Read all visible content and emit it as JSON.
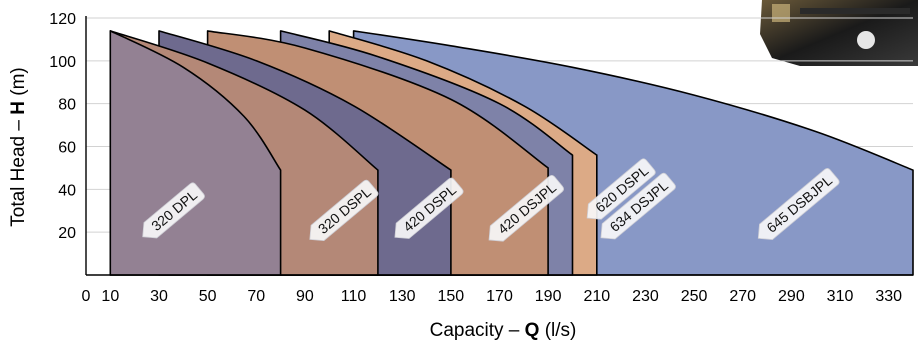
{
  "chart_data": {
    "type": "area",
    "title": "",
    "xlabel_prefix": "Capacity – ",
    "xlabel_bold": "Q",
    "xlabel_suffix": " (l/s)",
    "ylabel_prefix": "Total Head – ",
    "ylabel_bold": "H",
    "ylabel_suffix": " (m)",
    "xlim": [
      0,
      340
    ],
    "ylim": [
      0,
      120
    ],
    "x_ticks": [
      0,
      10,
      30,
      50,
      70,
      90,
      110,
      130,
      150,
      170,
      190,
      210,
      230,
      250,
      270,
      290,
      310,
      330
    ],
    "y_ticks": [
      20,
      40,
      60,
      80,
      100,
      120
    ],
    "grid": "horizontal",
    "series": [
      {
        "name": "645 DSBJPL",
        "color": "#8898c6",
        "x": [
          110,
          150,
          200,
          250,
          300,
          340
        ],
        "y": [
          114,
          107,
          97,
          84,
          67,
          49
        ],
        "x_min": 110
      },
      {
        "name": "634 DSJPL",
        "color": "#dcaa86",
        "x": [
          100,
          140,
          180,
          210
        ],
        "y": [
          114,
          100,
          79,
          56
        ],
        "x_min": 100
      },
      {
        "name": "620 DSPL",
        "color": "#7e82a8",
        "x": [
          80,
          120,
          170,
          200
        ],
        "y": [
          114,
          102,
          80,
          56
        ],
        "x_min": 80
      },
      {
        "name": "420 DSJPL",
        "color": "#c08f74",
        "x": [
          50,
          90,
          150,
          190
        ],
        "y": [
          114,
          106,
          82,
          50
        ],
        "x_min": 50
      },
      {
        "name": "420 DSPL",
        "color": "#6e6a8e",
        "x": [
          30,
          70,
          110,
          150
        ],
        "y": [
          114,
          100,
          79,
          49
        ],
        "x_min": 30
      },
      {
        "name": "320 DSPL",
        "color": "#b48877",
        "x": [
          10,
          50,
          90,
          120
        ],
        "y": [
          114,
          99,
          77,
          49
        ],
        "x_min": 10
      },
      {
        "name": "320 DPL",
        "color": "#938193",
        "x": [
          10,
          40,
          65,
          80
        ],
        "y": [
          114,
          97,
          74,
          49
        ],
        "x_min": 10
      }
    ],
    "labels": [
      {
        "text": "320 DPL",
        "x": 35,
        "y": 29
      },
      {
        "text": "320 DSPL",
        "x": 105,
        "y": 29
      },
      {
        "text": "420 DSPL",
        "x": 140,
        "y": 30
      },
      {
        "text": "420 DSJPL",
        "x": 180,
        "y": 30
      },
      {
        "text": "620 DSPL",
        "x": 219,
        "y": 39
      },
      {
        "text": "634 DSJPL",
        "x": 226,
        "y": 31
      },
      {
        "text": "645 DSBJPL",
        "x": 292,
        "y": 32
      }
    ]
  }
}
